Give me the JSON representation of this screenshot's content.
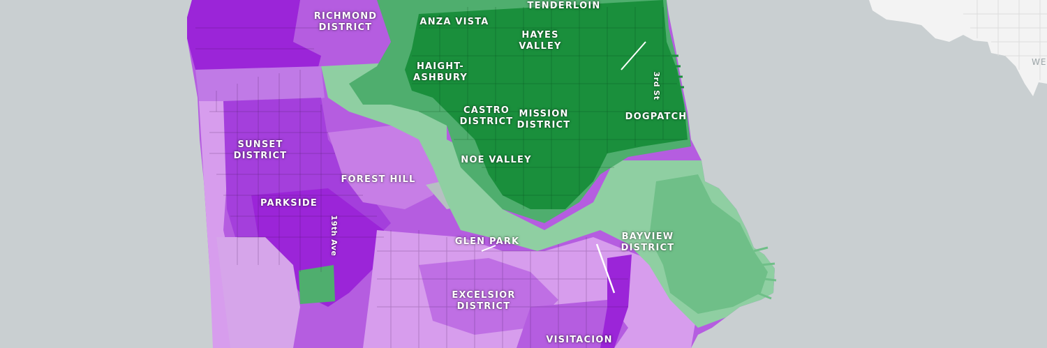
{
  "colors": {
    "water": "#c9cfd1",
    "land_other": "#f5f5f5",
    "purple_dark": "#9b25d8",
    "purple_mid": "#b55de0",
    "purple_light": "#d79ded",
    "green_dark": "#1a8f3c",
    "green_mid": "#4fae6e",
    "green_light": "#8fcfa2",
    "gray_shape": "#b6c0c2"
  },
  "neighborhoods": [
    {
      "name": "richmond-district",
      "text": "RICHMOND\nDISTRICT"
    },
    {
      "name": "anza-vista",
      "text": "ANZA VISTA"
    },
    {
      "name": "tenderloin",
      "text": "TENDERLOIN"
    },
    {
      "name": "hayes-valley",
      "text": "HAYES\nVALLEY"
    },
    {
      "name": "haight-ashbury",
      "text": "HAIGHT-\nASHBURY"
    },
    {
      "name": "castro-district",
      "text": "CASTRO\nDISTRICT"
    },
    {
      "name": "mission-district",
      "text": "MISSION\nDISTRICT"
    },
    {
      "name": "dogpatch",
      "text": "DOGPATCH"
    },
    {
      "name": "sunset-district",
      "text": "SUNSET\nDISTRICT"
    },
    {
      "name": "noe-valley",
      "text": "NOE VALLEY"
    },
    {
      "name": "forest-hill",
      "text": "FOREST HILL"
    },
    {
      "name": "parkside",
      "text": "PARKSIDE"
    },
    {
      "name": "glen-park",
      "text": "GLEN PARK"
    },
    {
      "name": "bayview-district",
      "text": "BAYVIEW\nDISTRICT"
    },
    {
      "name": "excelsior-district",
      "text": "EXCELSIOR\nDISTRICT"
    },
    {
      "name": "visitacion",
      "text": "VISITACION"
    }
  ],
  "streets": [
    {
      "name": "street-3rd-st",
      "text": "3rd St"
    },
    {
      "name": "street-19th-ave",
      "text": "19th Ave"
    }
  ],
  "edge_label": "WE"
}
